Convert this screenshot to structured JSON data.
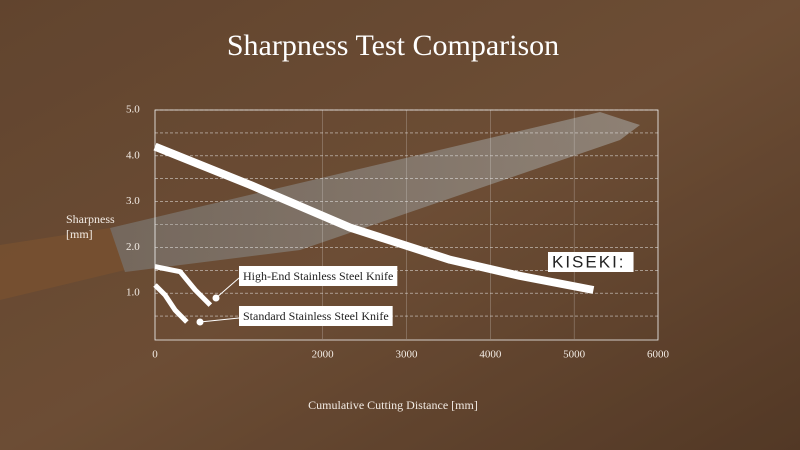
{
  "chart_data": {
    "type": "line",
    "title": "Sharpness Test Comparison",
    "x_label": "Cumulative Cutting Distance [mm]",
    "y_label": "Sharpness [mm]",
    "xlim": [
      0,
      6000
    ],
    "xticks": [
      0,
      2000,
      3000,
      4000,
      5000,
      6000
    ],
    "ylim": [
      0,
      5
    ],
    "yticks": [
      {
        "value": 1,
        "label": "1.0"
      },
      {
        "value": 2,
        "label": "2.0"
      },
      {
        "value": 3,
        "label": "3.0"
      },
      {
        "value": 4,
        "label": "4.0"
      },
      {
        "value": 5,
        "label": "5.0"
      }
    ],
    "y_minor_ticks": [
      0.5,
      1.5,
      2.5,
      3.5,
      4.5
    ],
    "grid": true,
    "series": [
      {
        "name": "KISEKI:",
        "color": "#ffffff",
        "x": [
          0,
          1130,
          2330,
          3520,
          4350,
          5230
        ],
        "values": [
          4.2,
          3.37,
          2.43,
          1.73,
          1.38,
          1.07
        ]
      },
      {
        "name": "High-End Stainless Steel Knife",
        "color": "#ffffff",
        "x": [
          0,
          300,
          480,
          660
        ],
        "values": [
          1.58,
          1.47,
          1.07,
          0.74
        ]
      },
      {
        "name": "Standard Stainless Steel Knife",
        "color": "#ffffff",
        "x": [
          0,
          120,
          240,
          380
        ],
        "values": [
          1.18,
          0.96,
          0.63,
          0.37
        ]
      }
    ]
  }
}
